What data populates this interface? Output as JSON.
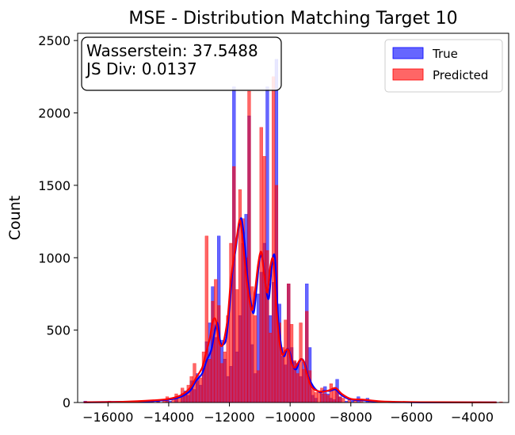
{
  "chart_data": {
    "type": "histogram",
    "title": "MSE - Distribution Matching Target 10",
    "xlabel": "",
    "ylabel": "Count",
    "xlim": [
      -17000,
      -2800
    ],
    "ylim": [
      0,
      2550
    ],
    "xticks": [
      -16000,
      -14000,
      -12000,
      -10000,
      -8000,
      -6000,
      -4000
    ],
    "xtick_labels": [
      "−16000",
      "−14000",
      "−12000",
      "−10000",
      "−8000",
      "−6000",
      "−4000"
    ],
    "yticks": [
      0,
      500,
      1000,
      1500,
      2000,
      2500
    ],
    "ytick_labels": [
      "0",
      "500",
      "1000",
      "1500",
      "2000",
      "2500"
    ],
    "bin_width": 100,
    "annotation": {
      "line1": "Wasserstein: 37.5488",
      "line2": "JS Div: 0.0137"
    },
    "legend": {
      "placement": "upper right",
      "entries": [
        {
          "name": "True",
          "color": "#0000ff"
        },
        {
          "name": "Predicted",
          "color": "#ff0000"
        }
      ]
    },
    "series": [
      {
        "name": "True",
        "color": "#0000ff",
        "bins": [
          [
            -16800,
            10
          ],
          [
            -15200,
            5
          ],
          [
            -14400,
            10
          ],
          [
            -14100,
            20
          ],
          [
            -14000,
            10
          ],
          [
            -13800,
            40
          ],
          [
            -13600,
            60
          ],
          [
            -13500,
            80
          ],
          [
            -13400,
            50
          ],
          [
            -13300,
            150
          ],
          [
            -13200,
            90
          ],
          [
            -13100,
            200
          ],
          [
            -13000,
            120
          ],
          [
            -12900,
            240
          ],
          [
            -12800,
            420
          ],
          [
            -12700,
            550
          ],
          [
            -12600,
            800
          ],
          [
            -12500,
            450
          ],
          [
            -12400,
            1150
          ],
          [
            -12300,
            430
          ],
          [
            -12200,
            300
          ],
          [
            -12100,
            180
          ],
          [
            -12000,
            250
          ],
          [
            -11900,
            2180
          ],
          [
            -11800,
            350
          ],
          [
            -11700,
            600
          ],
          [
            -11600,
            1100
          ],
          [
            -11500,
            1300
          ],
          [
            -11400,
            1980
          ],
          [
            -11300,
            400
          ],
          [
            -11200,
            200
          ],
          [
            -11100,
            750
          ],
          [
            -11000,
            900
          ],
          [
            -10900,
            1100
          ],
          [
            -10800,
            2180
          ],
          [
            -10700,
            600
          ],
          [
            -10600,
            830
          ],
          [
            -10500,
            2370
          ],
          [
            -10400,
            680
          ],
          [
            -10300,
            320
          ],
          [
            -10200,
            260
          ],
          [
            -10100,
            820
          ],
          [
            -10000,
            380
          ],
          [
            -9900,
            280
          ],
          [
            -9800,
            270
          ],
          [
            -9700,
            180
          ],
          [
            -9600,
            280
          ],
          [
            -9500,
            820
          ],
          [
            -9400,
            380
          ],
          [
            -9300,
            50
          ],
          [
            -9200,
            30
          ],
          [
            -9000,
            60
          ],
          [
            -8900,
            110
          ],
          [
            -8800,
            60
          ],
          [
            -8700,
            30
          ],
          [
            -8600,
            20
          ],
          [
            -8500,
            160
          ],
          [
            -8400,
            40
          ],
          [
            -8200,
            10
          ],
          [
            -8000,
            10
          ],
          [
            -7800,
            40
          ],
          [
            -7500,
            30
          ],
          [
            -7200,
            10
          ],
          [
            -6800,
            5
          ],
          [
            -6400,
            5
          ]
        ]
      },
      {
        "name": "Predicted",
        "color": "#ff0000",
        "bins": [
          [
            -16500,
            5
          ],
          [
            -16000,
            10
          ],
          [
            -15500,
            10
          ],
          [
            -15000,
            10
          ],
          [
            -14600,
            5
          ],
          [
            -14400,
            20
          ],
          [
            -14200,
            10
          ],
          [
            -14100,
            40
          ],
          [
            -13900,
            30
          ],
          [
            -13800,
            60
          ],
          [
            -13700,
            40
          ],
          [
            -13600,
            100
          ],
          [
            -13500,
            60
          ],
          [
            -13400,
            120
          ],
          [
            -13300,
            180
          ],
          [
            -13200,
            270
          ],
          [
            -13100,
            150
          ],
          [
            -13000,
            170
          ],
          [
            -12900,
            350
          ],
          [
            -12800,
            1150
          ],
          [
            -12700,
            300
          ],
          [
            -12600,
            700
          ],
          [
            -12500,
            850
          ],
          [
            -12400,
            670
          ],
          [
            -12300,
            270
          ],
          [
            -12200,
            350
          ],
          [
            -12100,
            600
          ],
          [
            -12000,
            1100
          ],
          [
            -11900,
            1630
          ],
          [
            -11800,
            780
          ],
          [
            -11700,
            1470
          ],
          [
            -11600,
            1270
          ],
          [
            -11500,
            1000
          ],
          [
            -11400,
            2150
          ],
          [
            -11300,
            800
          ],
          [
            -11200,
            600
          ],
          [
            -11100,
            220
          ],
          [
            -11000,
            1900
          ],
          [
            -10900,
            1700
          ],
          [
            -10800,
            1050
          ],
          [
            -10700,
            480
          ],
          [
            -10600,
            2250
          ],
          [
            -10500,
            1500
          ],
          [
            -10400,
            550
          ],
          [
            -10300,
            380
          ],
          [
            -10200,
            570
          ],
          [
            -10100,
            820
          ],
          [
            -10000,
            540
          ],
          [
            -9900,
            290
          ],
          [
            -9800,
            200
          ],
          [
            -9700,
            550
          ],
          [
            -9600,
            230
          ],
          [
            -9500,
            630
          ],
          [
            -9400,
            220
          ],
          [
            -9300,
            90
          ],
          [
            -9200,
            70
          ],
          [
            -9100,
            80
          ],
          [
            -9000,
            100
          ],
          [
            -8900,
            60
          ],
          [
            -8800,
            50
          ],
          [
            -8700,
            130
          ],
          [
            -8600,
            100
          ],
          [
            -8500,
            90
          ],
          [
            -8400,
            40
          ],
          [
            -8300,
            30
          ],
          [
            -8100,
            20
          ],
          [
            -7900,
            20
          ],
          [
            -7700,
            20
          ],
          [
            -7400,
            10
          ],
          [
            -7200,
            5
          ],
          [
            -6900,
            5
          ],
          [
            -6200,
            5
          ],
          [
            -5600,
            5
          ],
          [
            -4800,
            5
          ],
          [
            -3800,
            5
          ],
          [
            -3100,
            5
          ]
        ]
      }
    ],
    "kde": [
      {
        "name": "True",
        "color": "#0000ff",
        "points": [
          [
            -16800,
            2
          ],
          [
            -15200,
            5
          ],
          [
            -14500,
            10
          ],
          [
            -14000,
            20
          ],
          [
            -13600,
            40
          ],
          [
            -13300,
            80
          ],
          [
            -13100,
            150
          ],
          [
            -12900,
            200
          ],
          [
            -12750,
            290
          ],
          [
            -12600,
            360
          ],
          [
            -12500,
            470
          ],
          [
            -12400,
            550
          ],
          [
            -12300,
            420
          ],
          [
            -12200,
            400
          ],
          [
            -12100,
            450
          ],
          [
            -12000,
            650
          ],
          [
            -11900,
            900
          ],
          [
            -11800,
            1050
          ],
          [
            -11700,
            1200
          ],
          [
            -11600,
            1270
          ],
          [
            -11500,
            1100
          ],
          [
            -11400,
            850
          ],
          [
            -11300,
            700
          ],
          [
            -11200,
            620
          ],
          [
            -11100,
            800
          ],
          [
            -11000,
            1000
          ],
          [
            -10900,
            980
          ],
          [
            -10800,
            800
          ],
          [
            -10700,
            720
          ],
          [
            -10600,
            950
          ],
          [
            -10500,
            1000
          ],
          [
            -10400,
            600
          ],
          [
            -10300,
            400
          ],
          [
            -10200,
            320
          ],
          [
            -10100,
            370
          ],
          [
            -10000,
            340
          ],
          [
            -9900,
            250
          ],
          [
            -9800,
            230
          ],
          [
            -9700,
            280
          ],
          [
            -9600,
            300
          ],
          [
            -9500,
            260
          ],
          [
            -9400,
            180
          ],
          [
            -9200,
            100
          ],
          [
            -9000,
            70
          ],
          [
            -8900,
            80
          ],
          [
            -8700,
            80
          ],
          [
            -8500,
            90
          ],
          [
            -8300,
            50
          ],
          [
            -8000,
            20
          ],
          [
            -7600,
            15
          ],
          [
            -7000,
            5
          ],
          [
            -6000,
            2
          ],
          [
            -5000,
            1
          ],
          [
            -3200,
            1
          ]
        ]
      },
      {
        "name": "Predicted",
        "color": "#ff0000",
        "points": [
          [
            -16800,
            2
          ],
          [
            -15500,
            5
          ],
          [
            -14500,
            15
          ],
          [
            -14000,
            25
          ],
          [
            -13600,
            50
          ],
          [
            -13300,
            100
          ],
          [
            -13100,
            170
          ],
          [
            -12900,
            240
          ],
          [
            -12800,
            320
          ],
          [
            -12650,
            440
          ],
          [
            -12550,
            560
          ],
          [
            -12450,
            570
          ],
          [
            -12350,
            430
          ],
          [
            -12250,
            390
          ],
          [
            -12150,
            460
          ],
          [
            -12050,
            600
          ],
          [
            -11950,
            850
          ],
          [
            -11850,
            1000
          ],
          [
            -11750,
            1150
          ],
          [
            -11650,
            1260
          ],
          [
            -11550,
            1100
          ],
          [
            -11450,
            880
          ],
          [
            -11350,
            720
          ],
          [
            -11250,
            640
          ],
          [
            -11150,
            780
          ],
          [
            -11050,
            960
          ],
          [
            -10950,
            1040
          ],
          [
            -10850,
            880
          ],
          [
            -10750,
            760
          ],
          [
            -10650,
            940
          ],
          [
            -10550,
            980
          ],
          [
            -10450,
            650
          ],
          [
            -10350,
            420
          ],
          [
            -10250,
            330
          ],
          [
            -10150,
            360
          ],
          [
            -10050,
            360
          ],
          [
            -9950,
            270
          ],
          [
            -9850,
            240
          ],
          [
            -9750,
            270
          ],
          [
            -9650,
            300
          ],
          [
            -9550,
            280
          ],
          [
            -9450,
            200
          ],
          [
            -9300,
            110
          ],
          [
            -9100,
            80
          ],
          [
            -8900,
            75
          ],
          [
            -8700,
            85
          ],
          [
            -8500,
            100
          ],
          [
            -8300,
            60
          ],
          [
            -8000,
            25
          ],
          [
            -7600,
            20
          ],
          [
            -7000,
            8
          ],
          [
            -6000,
            3
          ],
          [
            -5000,
            2
          ],
          [
            -3200,
            1
          ]
        ]
      }
    ]
  }
}
